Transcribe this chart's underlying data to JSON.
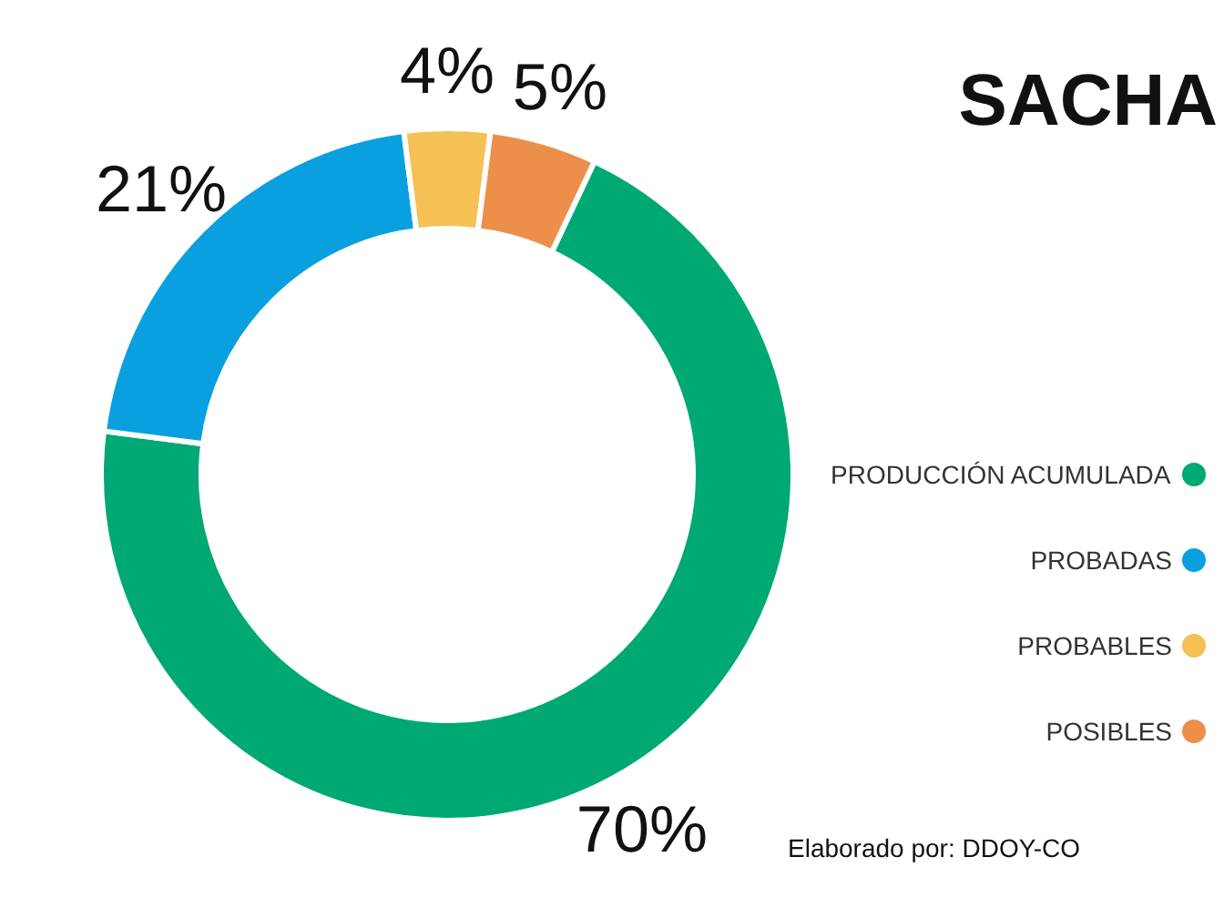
{
  "chart_data": {
    "type": "donut",
    "title": "SACHA",
    "categories": [
      "PRODUCCIÓN ACUMULADA",
      "PROBADAS",
      "PROBABLES",
      "POSIBLES"
    ],
    "values": [
      70,
      21,
      4,
      5
    ],
    "colors": [
      "#00a874",
      "#0aa0e0",
      "#f5c054",
      "#ec8f4b"
    ],
    "value_labels": [
      "70%",
      "21%",
      "4%",
      "5%"
    ],
    "legend": "right",
    "annotations": [
      "Elaborado por: DDOY-CO"
    ]
  }
}
